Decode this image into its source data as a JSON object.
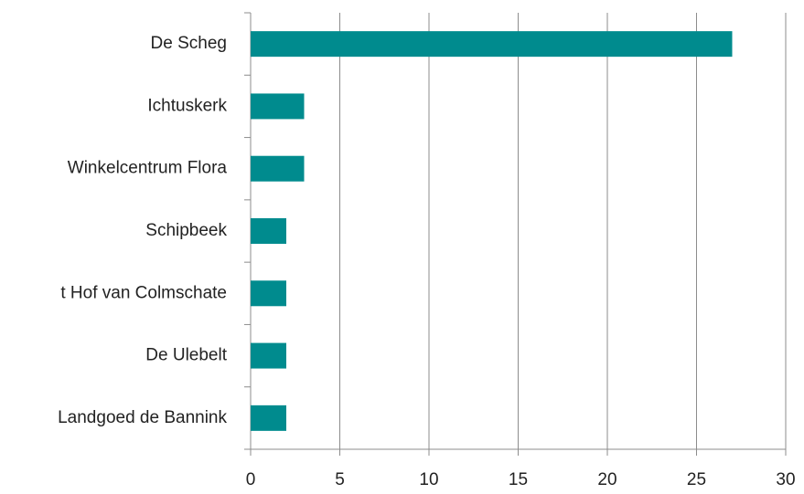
{
  "chart_data": {
    "type": "hbar",
    "categories": [
      "De Scheg",
      "Ichtuskerk",
      "Winkelcentrum Flora",
      "Schipbeek",
      "t Hof van Colmschate",
      "De Ulebelt",
      "Landgoed de Bannink"
    ],
    "values": [
      27,
      3,
      3,
      2,
      2,
      2,
      2
    ],
    "color": "#008b8e",
    "xlim": [
      0,
      30
    ],
    "xticks": [
      0,
      5,
      10,
      15,
      20,
      25,
      30
    ],
    "grid": true
  }
}
